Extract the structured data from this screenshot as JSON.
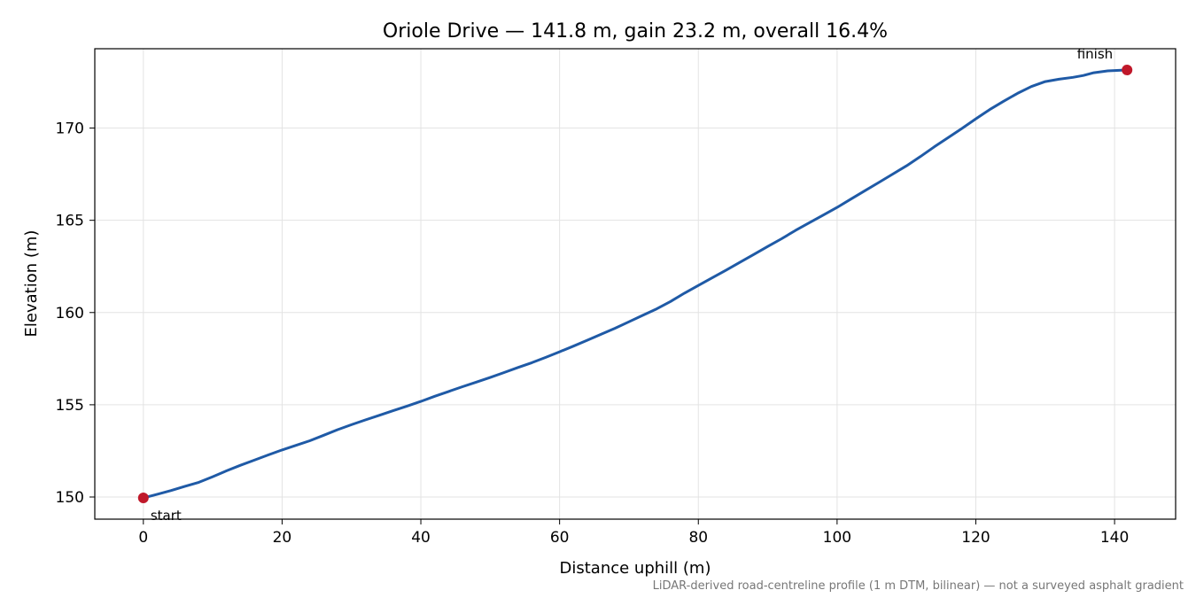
{
  "chart_data": {
    "type": "line",
    "title": "Oriole Drive — 141.8 m, gain 23.2 m, overall 16.4%",
    "xlabel": "Distance uphill (m)",
    "ylabel": "Elevation (m)",
    "xlim": [
      -7,
      148.8
    ],
    "ylim": [
      148.8,
      174.3
    ],
    "xticks": [
      0,
      20,
      40,
      60,
      80,
      100,
      120,
      140
    ],
    "yticks": [
      150,
      155,
      160,
      165,
      170
    ],
    "grid": true,
    "series": [
      {
        "color": "#1f5aa6",
        "x": [
          0,
          2,
          4,
          6,
          8,
          10,
          12,
          14,
          16,
          18,
          20,
          22,
          24,
          26,
          28,
          30,
          32,
          34,
          36,
          38,
          40,
          42,
          44,
          46,
          48,
          50,
          52,
          54,
          56,
          58,
          60,
          62,
          64,
          66,
          68,
          70,
          72,
          74,
          76,
          78,
          80,
          82,
          84,
          86,
          88,
          90,
          92,
          94,
          96,
          98,
          100,
          102,
          104,
          106,
          108,
          110,
          112,
          114,
          116,
          118,
          120,
          122,
          124,
          126,
          128,
          130,
          132,
          134,
          135.5,
          137,
          139,
          141.8
        ],
        "y": [
          149.95,
          150.15,
          150.35,
          150.58,
          150.8,
          151.1,
          151.42,
          151.72,
          152.0,
          152.28,
          152.55,
          152.8,
          153.05,
          153.35,
          153.65,
          153.92,
          154.18,
          154.43,
          154.68,
          154.93,
          155.18,
          155.46,
          155.72,
          155.98,
          156.23,
          156.48,
          156.75,
          157.02,
          157.28,
          157.57,
          157.87,
          158.18,
          158.5,
          158.82,
          159.15,
          159.5,
          159.85,
          160.2,
          160.6,
          161.05,
          161.47,
          161.88,
          162.3,
          162.72,
          163.15,
          163.58,
          164.0,
          164.45,
          164.87,
          165.28,
          165.7,
          166.15,
          166.6,
          167.05,
          167.5,
          167.95,
          168.45,
          168.98,
          169.48,
          169.98,
          170.5,
          171.0,
          171.45,
          171.88,
          172.25,
          172.52,
          172.65,
          172.75,
          172.85,
          173.0,
          173.1,
          173.15
        ]
      }
    ],
    "markers": [
      {
        "x": 0,
        "y": 149.95,
        "label": "start",
        "color": "#c0182a"
      },
      {
        "x": 141.8,
        "y": 173.15,
        "label": "finish",
        "color": "#c0182a"
      }
    ],
    "footnote": "LiDAR-derived road-centreline profile (1 m DTM, bilinear) — not a surveyed asphalt gradient"
  }
}
